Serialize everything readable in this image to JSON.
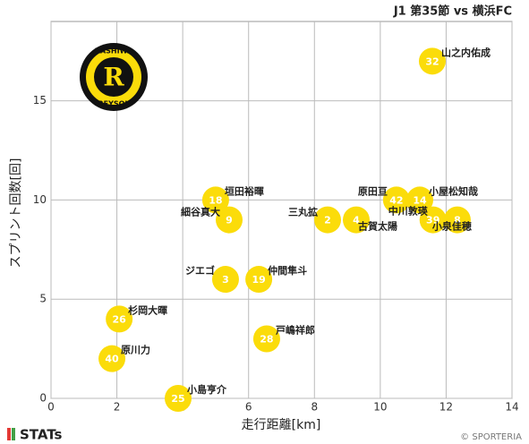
{
  "chart_data": {
    "type": "scatter",
    "title": "J1 第35節 vs 横浜FC",
    "x_label": "走行距離[km]",
    "y_label": "スプリント回数[回]",
    "x": [
      11.58,
      5.0,
      5.41,
      8.4,
      9.27,
      10.49,
      11.2,
      11.6,
      12.34,
      5.3,
      6.31,
      2.07,
      6.55,
      1.85,
      3.86
    ],
    "values": [
      17,
      10,
      9,
      9,
      9,
      10,
      10,
      9,
      9,
      6,
      6,
      4,
      3,
      2,
      0
    ],
    "numbers": [
      32,
      18,
      9,
      2,
      4,
      42,
      14,
      39,
      8,
      3,
      19,
      26,
      28,
      40,
      25
    ],
    "names": [
      "山之内佑成",
      "垣田裕暉",
      "細谷真大",
      "三丸拡",
      "古賀太陽",
      "原田亘",
      "小屋松知哉",
      "中川敦瑛",
      "小泉佳穂",
      "ジエゴ",
      "仲間隼斗",
      "杉岡大暉",
      "戸嶋祥郎",
      "原川力",
      "小島亨介"
    ],
    "color": "#fbdc0a",
    "xlim": [
      0,
      14
    ],
    "ylim": [
      0,
      19
    ],
    "xticks": [
      0,
      2,
      4,
      6,
      8,
      10,
      12,
      14
    ],
    "yticks": [
      0,
      5,
      10,
      15
    ],
    "grid": true
  },
  "logo": {
    "top": "KASHIWA",
    "bottom": "REYSOL"
  },
  "footer": {
    "brand": "STATs",
    "credit": "© SPORTERIA"
  }
}
